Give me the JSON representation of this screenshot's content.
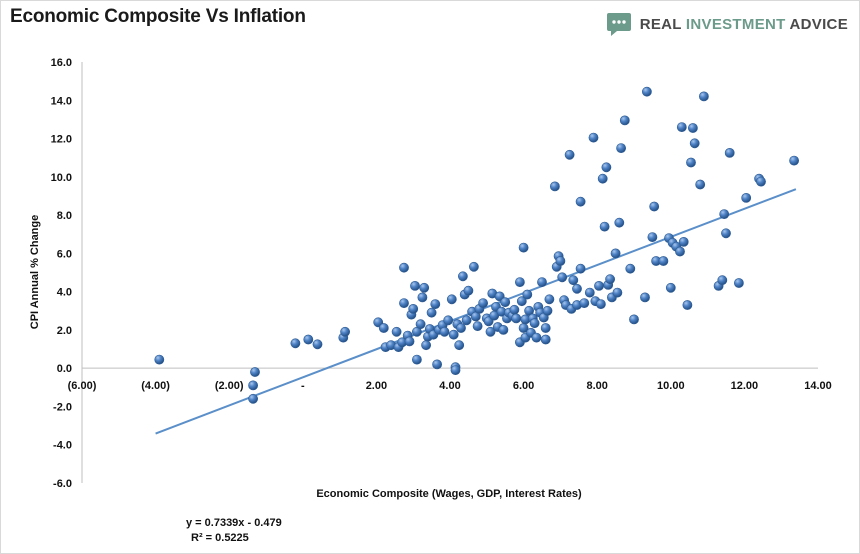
{
  "header": {
    "title": "Economic Composite Vs Inflation",
    "brand_prefix": "REAL ",
    "brand_accent": "INVESTMENT",
    "brand_suffix": " ADVICE",
    "brand_icon": "chat-bubble-icon"
  },
  "regression": {
    "equation": "y = 0.7339x - 0.479",
    "r_squared": "R² = 0.5225",
    "slope": 0.7339,
    "intercept": -0.479,
    "x_range": [
      -4.0,
      13.4
    ]
  },
  "colors": {
    "point_fill": "#4a7ebf",
    "point_stroke": "#2e5c94",
    "trendline": "#5b8fc9",
    "axis": "#bfbfbf",
    "brand_accent": "#6c9a8b"
  },
  "chart_data": {
    "type": "scatter",
    "title": "Economic Composite Vs Inflation",
    "xlabel": "Economic Composite (Wages, GDP, Interest Rates)",
    "ylabel": "CPI Annual % Change",
    "xlim": [
      -6,
      14
    ],
    "ylim": [
      -6,
      16
    ],
    "x_ticks": [
      -6,
      -4,
      -2,
      0,
      2,
      4,
      6,
      8,
      10,
      12,
      14
    ],
    "x_tick_labels": [
      "(6.00)",
      "(4.00)",
      "(2.00)",
      "-",
      "2.00",
      "4.00",
      "6.00",
      "8.00",
      "10.00",
      "12.00",
      "14.00"
    ],
    "y_ticks": [
      16,
      14,
      12,
      10,
      8,
      6,
      4,
      2,
      0,
      -2,
      -4,
      -6
    ],
    "y_tick_labels": [
      "16.0",
      "14.0",
      "12.0",
      "10.0",
      "8.0",
      "6.0",
      "4.0",
      "2.0",
      "0.0",
      "-2.0",
      "-4.0",
      "-6.0"
    ],
    "grid": false,
    "points": [
      [
        -3.9,
        0.45
      ],
      [
        -1.3,
        -0.2
      ],
      [
        -1.35,
        -0.9
      ],
      [
        -1.35,
        -1.6
      ],
      [
        -0.2,
        1.3
      ],
      [
        0.15,
        1.5
      ],
      [
        0.4,
        1.25
      ],
      [
        1.1,
        1.6
      ],
      [
        1.15,
        1.9
      ],
      [
        2.05,
        2.4
      ],
      [
        2.2,
        2.1
      ],
      [
        2.25,
        1.1
      ],
      [
        2.4,
        1.2
      ],
      [
        2.55,
        1.9
      ],
      [
        2.6,
        1.1
      ],
      [
        2.7,
        1.35
      ],
      [
        2.75,
        3.4
      ],
      [
        2.75,
        5.25
      ],
      [
        2.85,
        1.7
      ],
      [
        2.9,
        1.4
      ],
      [
        2.95,
        2.8
      ],
      [
        3.0,
        3.1
      ],
      [
        3.05,
        4.3
      ],
      [
        3.1,
        0.45
      ],
      [
        3.1,
        1.9
      ],
      [
        3.2,
        2.3
      ],
      [
        3.25,
        3.7
      ],
      [
        3.3,
        4.2
      ],
      [
        3.35,
        1.2
      ],
      [
        3.4,
        1.65
      ],
      [
        3.45,
        2.05
      ],
      [
        3.5,
        2.9
      ],
      [
        3.55,
        1.75
      ],
      [
        3.6,
        3.35
      ],
      [
        3.65,
        0.2
      ],
      [
        3.7,
        2.0
      ],
      [
        3.8,
        2.25
      ],
      [
        3.85,
        1.9
      ],
      [
        3.95,
        2.5
      ],
      [
        4.05,
        3.6
      ],
      [
        4.1,
        1.75
      ],
      [
        4.15,
        0.05
      ],
      [
        4.15,
        -0.1
      ],
      [
        4.2,
        2.3
      ],
      [
        4.25,
        1.2
      ],
      [
        4.3,
        2.1
      ],
      [
        4.35,
        4.8
      ],
      [
        4.4,
        3.85
      ],
      [
        4.45,
        2.5
      ],
      [
        4.5,
        4.05
      ],
      [
        4.6,
        2.95
      ],
      [
        4.65,
        5.3
      ],
      [
        4.7,
        2.7
      ],
      [
        4.75,
        2.2
      ],
      [
        4.8,
        3.1
      ],
      [
        4.9,
        3.4
      ],
      [
        5.0,
        2.6
      ],
      [
        5.05,
        2.45
      ],
      [
        5.1,
        1.9
      ],
      [
        5.15,
        3.9
      ],
      [
        5.2,
        2.75
      ],
      [
        5.25,
        3.2
      ],
      [
        5.3,
        2.15
      ],
      [
        5.35,
        3.75
      ],
      [
        5.4,
        2.95
      ],
      [
        5.45,
        2.0
      ],
      [
        5.5,
        3.45
      ],
      [
        5.55,
        2.6
      ],
      [
        5.6,
        2.9
      ],
      [
        5.7,
        2.75
      ],
      [
        5.75,
        3.05
      ],
      [
        5.8,
        2.6
      ],
      [
        5.9,
        1.35
      ],
      [
        5.9,
        4.5
      ],
      [
        5.95,
        3.5
      ],
      [
        6.0,
        6.3
      ],
      [
        6.0,
        2.1
      ],
      [
        6.05,
        2.55
      ],
      [
        6.05,
        1.6
      ],
      [
        6.1,
        3.85
      ],
      [
        6.15,
        3.0
      ],
      [
        6.2,
        1.85
      ],
      [
        6.25,
        2.6
      ],
      [
        6.3,
        2.35
      ],
      [
        6.35,
        1.6
      ],
      [
        6.4,
        3.2
      ],
      [
        6.45,
        2.9
      ],
      [
        6.5,
        4.5
      ],
      [
        6.55,
        2.65
      ],
      [
        6.6,
        1.5
      ],
      [
        6.6,
        2.1
      ],
      [
        6.65,
        3.0
      ],
      [
        6.7,
        3.6
      ],
      [
        6.85,
        9.5
      ],
      [
        6.9,
        5.3
      ],
      [
        6.95,
        5.85
      ],
      [
        7.0,
        5.6
      ],
      [
        7.05,
        4.75
      ],
      [
        7.1,
        3.55
      ],
      [
        7.15,
        3.3
      ],
      [
        7.25,
        11.15
      ],
      [
        7.3,
        3.1
      ],
      [
        7.35,
        4.6
      ],
      [
        7.45,
        3.3
      ],
      [
        7.45,
        4.15
      ],
      [
        7.55,
        8.7
      ],
      [
        7.55,
        5.2
      ],
      [
        7.65,
        3.4
      ],
      [
        7.8,
        3.95
      ],
      [
        7.9,
        12.05
      ],
      [
        7.95,
        3.5
      ],
      [
        8.05,
        4.3
      ],
      [
        8.1,
        3.35
      ],
      [
        8.15,
        9.9
      ],
      [
        8.2,
        7.4
      ],
      [
        8.25,
        10.5
      ],
      [
        8.3,
        4.35
      ],
      [
        8.35,
        4.65
      ],
      [
        8.4,
        3.7
      ],
      [
        8.5,
        6.0
      ],
      [
        8.55,
        3.95
      ],
      [
        8.6,
        7.6
      ],
      [
        8.65,
        11.5
      ],
      [
        8.75,
        12.95
      ],
      [
        8.9,
        5.2
      ],
      [
        9.0,
        2.55
      ],
      [
        9.3,
        3.7
      ],
      [
        9.35,
        14.45
      ],
      [
        9.5,
        6.85
      ],
      [
        9.55,
        8.45
      ],
      [
        9.6,
        5.6
      ],
      [
        9.8,
        5.6
      ],
      [
        9.95,
        6.8
      ],
      [
        10.0,
        4.2
      ],
      [
        10.05,
        6.55
      ],
      [
        10.15,
        6.35
      ],
      [
        10.25,
        6.1
      ],
      [
        10.3,
        12.6
      ],
      [
        10.35,
        6.6
      ],
      [
        10.45,
        3.3
      ],
      [
        10.55,
        10.75
      ],
      [
        10.6,
        12.55
      ],
      [
        10.65,
        11.75
      ],
      [
        10.8,
        9.6
      ],
      [
        10.9,
        14.2
      ],
      [
        11.3,
        4.3
      ],
      [
        11.4,
        4.6
      ],
      [
        11.45,
        8.05
      ],
      [
        11.5,
        7.05
      ],
      [
        11.6,
        11.25
      ],
      [
        11.85,
        4.45
      ],
      [
        12.05,
        8.9
      ],
      [
        12.4,
        9.9
      ],
      [
        12.45,
        9.75
      ],
      [
        13.35,
        10.85
      ]
    ]
  }
}
